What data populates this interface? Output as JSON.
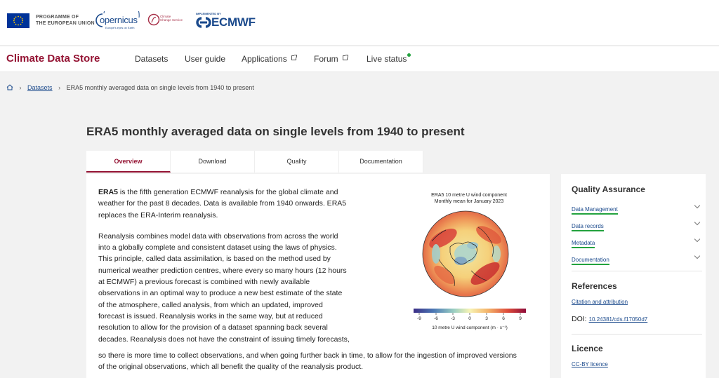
{
  "header": {
    "eu_programme": [
      "PROGRAMME OF",
      "THE EUROPEAN UNION"
    ],
    "copernicus_word": "opernicus",
    "copernicus_tagline": "Europe's eyes on Earth",
    "c3s_text": [
      "Climate",
      "Change Service"
    ],
    "ecmwf_implemented": "IMPLEMENTED BY",
    "ecmwf_name": "ECMWF"
  },
  "nav": {
    "brand": "Climate Data Store",
    "items": [
      {
        "label": "Datasets",
        "external": false
      },
      {
        "label": "User guide",
        "external": false
      },
      {
        "label": "Applications",
        "external": true
      },
      {
        "label": "Forum",
        "external": true
      },
      {
        "label": "Live status",
        "external": false
      }
    ],
    "live_status_color": "#23a23e"
  },
  "breadcrumb": {
    "link": "Datasets",
    "current": "ERA5 monthly averaged data on single levels from 1940 to present"
  },
  "page_title": "ERA5 monthly averaged data on single levels from 1940 to present",
  "tabs": [
    {
      "label": "Overview",
      "active": true
    },
    {
      "label": "Download",
      "active": false
    },
    {
      "label": "Quality",
      "active": false
    },
    {
      "label": "Documentation",
      "active": false
    }
  ],
  "description": {
    "p1_bold": "ERA5",
    "p1_rest": " is the fifth generation ECMWF reanalysis for the global climate and weather for the past 8 decades. Data is available from 1940 onwards. ERA5 replaces the ERA-Interim reanalysis.",
    "p2_lines": [
      "Reanalysis combines model data with observations from across the world",
      "into a globally complete and consistent dataset using the laws of physics.",
      "This principle, called data assimilation, is based on the method used by",
      "numerical weather prediction centres, where every so many hours (12 hours",
      "at ECMWF) a previous forecast is combined with newly available",
      "observations in an optimal way to produce a new best estimate of the state",
      "of the atmosphere, called analysis, from which an updated, improved",
      "forecast is issued. Reanalysis works in the same way, but at reduced",
      "resolution to allow for the provision of a dataset spanning back several",
      "decades. Reanalysis does not have the constraint of issuing timely forecasts,"
    ],
    "tail_lines": [
      "so there is more time to collect observations, and when going further back in time, to allow for the ingestion of improved versions",
      "of the original observations, which all benefit the quality of the reanalysis product."
    ]
  },
  "figure": {
    "title_line1": "ERA5 10 metre U wind component",
    "title_line2": "Monthly mean for January 2023",
    "colorbar_ticks": [
      "-9",
      "-6",
      "-3",
      "0",
      "3",
      "6",
      "9"
    ],
    "colorbar_label": "10 metre U wind component (m · s⁻¹)"
  },
  "sidebar": {
    "qa_title": "Quality Assurance",
    "qa_items": [
      "Data Management",
      "Data records",
      "Metadata",
      "Documentation"
    ],
    "references_title": "References",
    "citation_link": "Citation and attribution",
    "doi_label": "DOI:",
    "doi_value": "10.24381/cds.f17050d7",
    "licence_title": "Licence",
    "licence_link": "CC-BY licence"
  },
  "colors": {
    "brand": "#941333",
    "link": "#1b4a8c",
    "qa_underline": "#23a23e"
  }
}
